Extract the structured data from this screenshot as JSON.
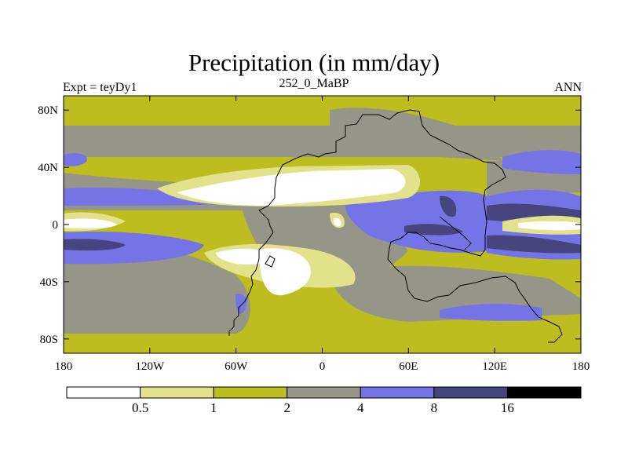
{
  "chart_data": {
    "type": "heatmap",
    "title": "Precipitation (in mm/day)",
    "subtitle_left": "Expt = teyDy1",
    "subtitle_center": "252_0_MaBP",
    "subtitle_right": "ANN",
    "x_axis": {
      "range": [
        -180,
        180
      ],
      "ticks": [
        -180,
        -120,
        -60,
        0,
        60,
        120,
        180
      ],
      "tick_labels": [
        "180",
        "120W",
        "60W",
        "0",
        "60E",
        "120E",
        "180"
      ]
    },
    "y_axis": {
      "range": [
        -90,
        90
      ],
      "ticks": [
        80,
        40,
        0,
        -40,
        -80
      ],
      "tick_labels": [
        "80N",
        "40N",
        "0",
        "40S",
        "80S"
      ]
    },
    "colorbar": {
      "levels": [
        "0.5",
        "1",
        "2",
        "4",
        "8",
        "16"
      ],
      "colors": [
        "#ffffff",
        "#e2e28c",
        "#bdbd1f",
        "#969688",
        "#7474e6",
        "#46467f",
        "#000000"
      ]
    }
  }
}
